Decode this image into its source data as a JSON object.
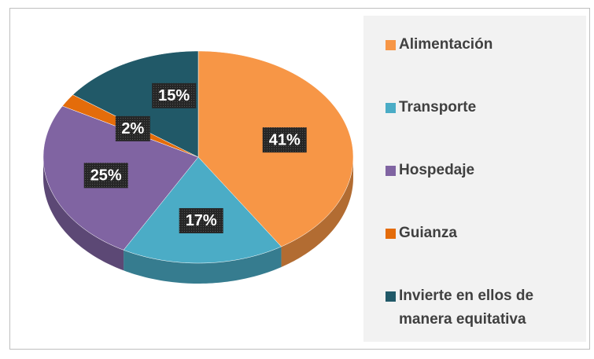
{
  "chart_data": {
    "type": "pie",
    "categories": [
      "Alimentación",
      "Transporte",
      "Hospedaje",
      "Guianza",
      "Invierte en ellos de manera equitativa"
    ],
    "values": [
      41,
      17,
      25,
      2,
      15
    ],
    "value_labels": [
      "41%",
      "17%",
      "25%",
      "2%",
      "15%"
    ],
    "colors": [
      "#f79646",
      "#4bacc6",
      "#8064a2",
      "#e46c0a",
      "#215968"
    ],
    "legend": "right"
  }
}
